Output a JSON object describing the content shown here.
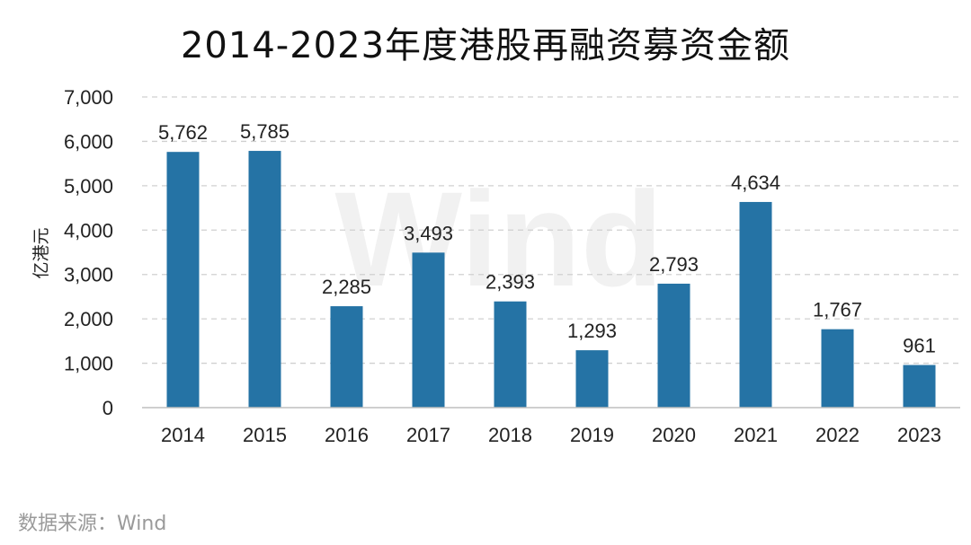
{
  "chart_data": {
    "type": "bar",
    "title": "2014-2023年度港股再融资募资金额",
    "ylabel": "亿港元",
    "xlabel": "",
    "categories": [
      "2014",
      "2015",
      "2016",
      "2017",
      "2018",
      "2019",
      "2020",
      "2021",
      "2022",
      "2023"
    ],
    "values": [
      5762,
      5785,
      2285,
      3493,
      2393,
      1293,
      2793,
      4634,
      1767,
      961
    ],
    "data_labels": [
      "5,762",
      "5,785",
      "2,285",
      "3,493",
      "2,393",
      "1,293",
      "2,793",
      "4,634",
      "1,767",
      "961"
    ],
    "ylim": [
      0,
      7000
    ],
    "yticks": [
      0,
      1000,
      2000,
      3000,
      4000,
      5000,
      6000,
      7000
    ],
    "ytick_labels": [
      "0",
      "1,000",
      "2,000",
      "3,000",
      "4,000",
      "5,000",
      "6,000",
      "7,000"
    ],
    "grid": true,
    "bar_color": "#2573a5"
  },
  "watermark": "Wind",
  "source": "数据来源：Wind"
}
